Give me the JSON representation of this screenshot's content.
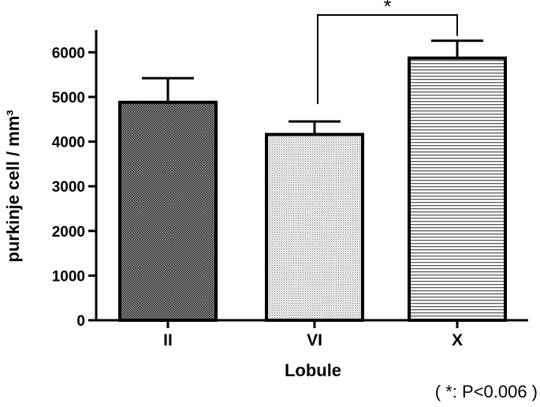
{
  "chart_data": {
    "type": "bar",
    "categories": [
      "II",
      "VI",
      "X"
    ],
    "values": [
      4880,
      4160,
      5870
    ],
    "errors": [
      540,
      290,
      390
    ],
    "patterns": [
      "checker-dark",
      "dots-light",
      "horizontal-lines"
    ],
    "xlabel": "Lobule",
    "ylabel": "purkinje cell  / mm³",
    "ylim": [
      0,
      6500
    ],
    "yticks": [
      0,
      1000,
      2000,
      3000,
      4000,
      5000,
      6000
    ],
    "grid": false,
    "significance": {
      "from": "VI",
      "to": "X",
      "label": "*"
    },
    "footnote": "( *: P<0.006 )"
  }
}
